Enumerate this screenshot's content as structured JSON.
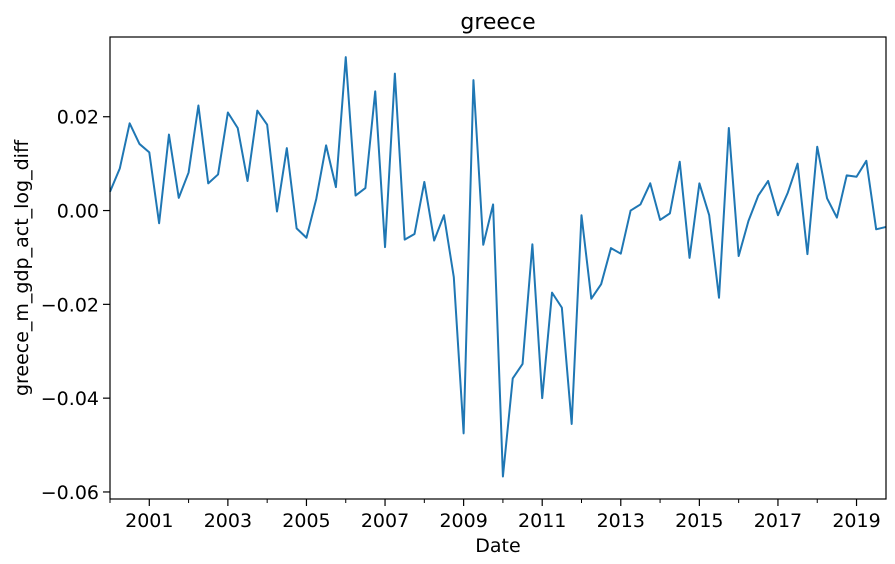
{
  "chart_data": {
    "type": "line",
    "title": "greece",
    "xlabel": "Date",
    "ylabel": "greece_m_gdp_act_log_diff",
    "xlim": [
      2000.0,
      2019.75
    ],
    "ylim": [
      -0.0615,
      0.037
    ],
    "x_ticks": [
      "2001",
      "2003",
      "2005",
      "2007",
      "2009",
      "2011",
      "2013",
      "2015",
      "2017",
      "2019"
    ],
    "y_ticks": [
      "0.02",
      "0.00",
      "−0.02",
      "−0.04",
      "−0.06"
    ],
    "grid": false,
    "series_color": "#1f77b4",
    "series": [
      {
        "x": [
          2000.0,
          2000.25,
          2000.5,
          2000.75,
          2001.0,
          2001.25,
          2001.5,
          2001.75,
          2002.0,
          2002.25,
          2002.5,
          2002.75,
          2003.0,
          2003.25,
          2003.5,
          2003.75,
          2004.0,
          2004.25,
          2004.5,
          2004.75,
          2005.0,
          2005.25,
          2005.5,
          2005.75,
          2006.0,
          2006.25,
          2006.5,
          2006.75,
          2007.0,
          2007.25,
          2007.5,
          2007.75,
          2008.0,
          2008.25,
          2008.5,
          2008.75,
          2009.0,
          2009.25,
          2009.5,
          2009.75,
          2010.0,
          2010.25,
          2010.5,
          2010.75,
          2011.0,
          2011.25,
          2011.5,
          2011.75,
          2012.0,
          2012.25,
          2012.5,
          2012.75,
          2013.0,
          2013.25,
          2013.5,
          2013.75,
          2014.0,
          2014.25,
          2014.5,
          2014.75,
          2015.0,
          2015.25,
          2015.5,
          2015.75,
          2016.0,
          2016.25,
          2016.5,
          2016.75,
          2017.0,
          2017.25,
          2017.5,
          2017.75,
          2018.0,
          2018.25,
          2018.5,
          2018.75,
          2019.0,
          2019.25,
          2019.5,
          2019.75
        ],
        "values": [
          0.004,
          0.009,
          0.0186,
          0.0142,
          0.0124,
          -0.0027,
          0.0162,
          0.0027,
          0.0081,
          0.0224,
          0.0058,
          0.0077,
          0.0209,
          0.0176,
          0.0063,
          0.0213,
          0.0183,
          -0.0002,
          0.0133,
          -0.0038,
          -0.0058,
          0.0025,
          0.0139,
          0.005,
          0.0327,
          0.0032,
          0.0048,
          0.0254,
          -0.0078,
          0.0292,
          -0.0062,
          -0.005,
          0.0061,
          -0.0064,
          -0.001,
          -0.0142,
          -0.0475,
          0.0278,
          -0.0073,
          0.0013,
          -0.0567,
          -0.0358,
          -0.0327,
          -0.0072,
          -0.04,
          -0.0175,
          -0.0207,
          -0.0455,
          -0.001,
          -0.0188,
          -0.0157,
          -0.008,
          -0.0092,
          0.0,
          0.0013,
          0.0058,
          -0.002,
          -0.0006,
          0.0104,
          -0.0101,
          0.0058,
          -0.001,
          -0.0186,
          0.0176,
          -0.0097,
          -0.0022,
          0.0032,
          0.0063,
          -0.001,
          0.0038,
          0.01,
          -0.0093,
          0.0136,
          0.0026,
          -0.0015,
          0.0075,
          0.0072,
          0.0106,
          -0.004,
          -0.0035
        ]
      }
    ]
  }
}
